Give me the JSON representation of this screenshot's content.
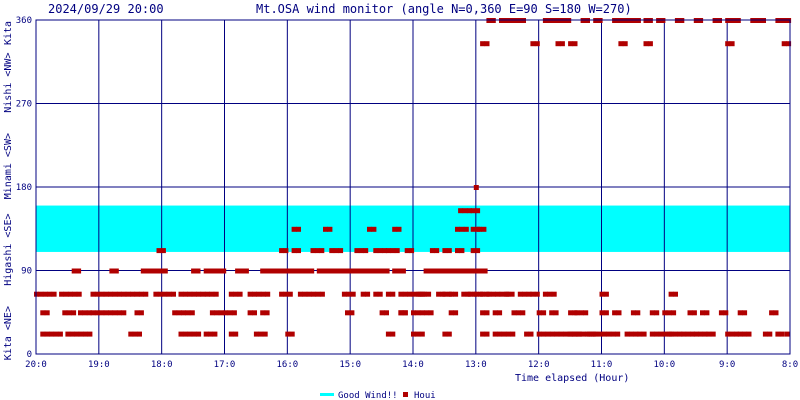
{
  "chart_data": {
    "type": "scatter",
    "timestamp": "2024/09/29 20:00",
    "title": "Mt.OSA wind monitor (angle N=0,360 E=90 S=180 W=270)",
    "xlabel": "Time elapsed (Hour)",
    "y_ticks": [
      "0",
      "90",
      "180",
      "270",
      "360"
    ],
    "x_ticks": [
      "20:0",
      "19:0",
      "18:0",
      "17:0",
      "16:0",
      "15:0",
      "14:0",
      "13:0",
      "12:0",
      "11:0",
      "10:0",
      "9:0",
      "8:0"
    ],
    "ylim": [
      0,
      360
    ],
    "xlim_hours_elapsed": [
      0,
      12
    ],
    "direction_labels": [
      "Kita <NE>",
      "Higashi <SE>",
      "Minami <SW>",
      "Nishi <NW>",
      "Kita"
    ],
    "good_wind_band": {
      "from_deg": 110,
      "to_deg": 160,
      "label": "Good Wind!!",
      "color": "#00ffff"
    },
    "colors": {
      "plot_border": "#000080",
      "grid": "#000080",
      "point": "#b00000",
      "band": "#00ffff"
    },
    "legend": {
      "placement": "bottom-center",
      "items": [
        "Good Wind!!",
        "Houi"
      ]
    },
    "series": [
      {
        "name": "Houi",
        "runs": [
          [
            0.0,
            0.3,
            65
          ],
          [
            0.1,
            0.2,
            45
          ],
          [
            0.1,
            0.4,
            22
          ],
          [
            0.4,
            0.7,
            65
          ],
          [
            0.45,
            0.6,
            45
          ],
          [
            0.5,
            0.9,
            22
          ],
          [
            0.6,
            0.7,
            90
          ],
          [
            0.7,
            0.9,
            45
          ],
          [
            0.9,
            1.4,
            45
          ],
          [
            0.9,
            1.8,
            65
          ],
          [
            1.2,
            1.3,
            90
          ],
          [
            1.5,
            1.7,
            22
          ],
          [
            1.6,
            1.7,
            45
          ],
          [
            1.7,
            2.1,
            90
          ],
          [
            1.9,
            2.2,
            65
          ],
          [
            1.95,
            2.05,
            112
          ],
          [
            2.2,
            2.5,
            45
          ],
          [
            2.3,
            2.9,
            65
          ],
          [
            2.3,
            2.6,
            22
          ],
          [
            2.5,
            2.6,
            90
          ],
          [
            2.7,
            3.0,
            90
          ],
          [
            2.7,
            2.9,
            22
          ],
          [
            2.8,
            3.2,
            45
          ],
          [
            3.1,
            3.3,
            65
          ],
          [
            3.1,
            3.2,
            22
          ],
          [
            3.2,
            3.4,
            90
          ],
          [
            3.4,
            3.7,
            65
          ],
          [
            3.4,
            3.5,
            45
          ],
          [
            3.5,
            3.7,
            22
          ],
          [
            3.6,
            3.7,
            45
          ],
          [
            3.6,
            3.7,
            90
          ],
          [
            3.7,
            4.1,
            90
          ],
          [
            3.9,
            4.0,
            112
          ],
          [
            3.9,
            4.1,
            65
          ],
          [
            4.0,
            4.1,
            22
          ],
          [
            4.1,
            4.2,
            135
          ],
          [
            4.1,
            4.2,
            112
          ],
          [
            4.1,
            4.4,
            90
          ],
          [
            4.2,
            4.6,
            65
          ],
          [
            4.4,
            4.6,
            112
          ],
          [
            4.5,
            4.7,
            90
          ],
          [
            4.6,
            4.7,
            135
          ],
          [
            4.7,
            4.9,
            112
          ],
          [
            4.7,
            5.3,
            90
          ],
          [
            4.9,
            5.1,
            65
          ],
          [
            4.95,
            5.05,
            45
          ],
          [
            5.1,
            5.3,
            112
          ],
          [
            5.2,
            5.3,
            65
          ],
          [
            5.3,
            5.4,
            135
          ],
          [
            5.3,
            5.6,
            90
          ],
          [
            5.4,
            5.5,
            65
          ],
          [
            5.4,
            5.6,
            112
          ],
          [
            5.5,
            5.6,
            45
          ],
          [
            5.6,
            5.7,
            22
          ],
          [
            5.6,
            5.8,
            112
          ],
          [
            5.6,
            5.7,
            65
          ],
          [
            5.7,
            5.8,
            135
          ],
          [
            5.7,
            5.9,
            90
          ],
          [
            5.8,
            5.9,
            45
          ],
          [
            5.9,
            6.0,
            112
          ],
          [
            5.8,
            6.2,
            65
          ],
          [
            5.8,
            5.9,
            45
          ],
          [
            6.0,
            6.3,
            45
          ],
          [
            6.1,
            6.3,
            65
          ],
          [
            6.0,
            6.2,
            22
          ],
          [
            6.2,
            6.3,
            90
          ],
          [
            6.3,
            6.4,
            112
          ],
          [
            6.3,
            6.6,
            90
          ],
          [
            6.4,
            6.5,
            65
          ],
          [
            6.5,
            6.6,
            112
          ],
          [
            6.5,
            6.6,
            65
          ],
          [
            6.5,
            6.6,
            22
          ],
          [
            6.6,
            6.7,
            45
          ],
          [
            6.7,
            6.9,
            135
          ],
          [
            6.6,
            6.9,
            90
          ],
          [
            6.6,
            6.7,
            65
          ],
          [
            6.7,
            6.8,
            112
          ],
          [
            6.75,
            6.95,
            155
          ],
          [
            6.8,
            6.9,
            65
          ],
          [
            6.9,
            7.0,
            90
          ],
          [
            6.95,
            7.05,
            112
          ],
          [
            6.9,
            7.0,
            65
          ],
          [
            6.95,
            7.05,
            135
          ],
          [
            6.95,
            7.05,
            155
          ],
          [
            7.0,
            7.05,
            180
          ],
          [
            7.0,
            7.2,
            90
          ],
          [
            7.0,
            7.1,
            65
          ],
          [
            7.05,
            7.15,
            135
          ],
          [
            7.1,
            7.2,
            65
          ],
          [
            7.1,
            7.2,
            45
          ],
          [
            7.1,
            7.2,
            22
          ],
          [
            7.1,
            7.2,
            335
          ],
          [
            7.2,
            7.3,
            360
          ],
          [
            7.2,
            7.5,
            65
          ],
          [
            7.3,
            7.4,
            45
          ],
          [
            7.3,
            7.6,
            22
          ],
          [
            7.4,
            7.8,
            360
          ],
          [
            7.5,
            7.6,
            65
          ],
          [
            7.6,
            7.8,
            45
          ],
          [
            7.7,
            7.9,
            65
          ],
          [
            7.8,
            7.9,
            22
          ],
          [
            7.9,
            8.0,
            65
          ],
          [
            8.0,
            8.1,
            45
          ],
          [
            7.9,
            8.0,
            335
          ],
          [
            8.1,
            8.3,
            65
          ],
          [
            8.1,
            8.4,
            360
          ],
          [
            8.2,
            8.3,
            45
          ],
          [
            8.3,
            8.4,
            335
          ],
          [
            8.0,
            8.9,
            22
          ],
          [
            8.4,
            8.5,
            360
          ],
          [
            8.5,
            8.6,
            335
          ],
          [
            8.5,
            8.6,
            45
          ],
          [
            8.5,
            8.7,
            22
          ],
          [
            8.6,
            8.8,
            45
          ],
          [
            8.7,
            8.8,
            360
          ],
          [
            8.8,
            8.9,
            22
          ],
          [
            8.9,
            9.3,
            22
          ],
          [
            8.9,
            9.0,
            360
          ],
          [
            9.0,
            9.1,
            45
          ],
          [
            9.0,
            9.1,
            65
          ],
          [
            9.2,
            9.3,
            360
          ],
          [
            9.2,
            9.3,
            45
          ],
          [
            9.3,
            9.4,
            335
          ],
          [
            9.3,
            9.6,
            360
          ],
          [
            9.4,
            9.6,
            22
          ],
          [
            9.5,
            9.6,
            45
          ],
          [
            9.6,
            9.7,
            22
          ],
          [
            9.7,
            9.8,
            360
          ],
          [
            9.7,
            9.8,
            335
          ],
          [
            9.8,
            10.1,
            22
          ],
          [
            9.8,
            9.9,
            45
          ],
          [
            9.9,
            10.0,
            360
          ],
          [
            10.0,
            10.2,
            45
          ],
          [
            10.1,
            10.2,
            65
          ],
          [
            10.1,
            10.3,
            22
          ],
          [
            10.2,
            10.3,
            360
          ],
          [
            10.3,
            10.5,
            22
          ],
          [
            10.4,
            10.5,
            45
          ],
          [
            10.5,
            10.7,
            22
          ],
          [
            10.5,
            10.6,
            360
          ],
          [
            10.6,
            10.7,
            45
          ],
          [
            10.7,
            10.8,
            22
          ],
          [
            10.8,
            10.9,
            360
          ],
          [
            10.9,
            11.0,
            45
          ],
          [
            11.0,
            11.2,
            22
          ],
          [
            11.0,
            11.1,
            335
          ],
          [
            11.0,
            11.1,
            360
          ],
          [
            11.1,
            11.2,
            360
          ],
          [
            11.2,
            11.3,
            45
          ],
          [
            11.2,
            11.4,
            22
          ],
          [
            11.4,
            11.5,
            360
          ],
          [
            11.5,
            11.6,
            360
          ],
          [
            11.6,
            11.7,
            22
          ],
          [
            11.7,
            11.8,
            45
          ],
          [
            11.8,
            11.9,
            360
          ],
          [
            11.8,
            11.9,
            22
          ],
          [
            11.9,
            12.0,
            335
          ],
          [
            11.9,
            12.0,
            360
          ],
          [
            11.95,
            12.0,
            22
          ]
        ]
      }
    ]
  }
}
